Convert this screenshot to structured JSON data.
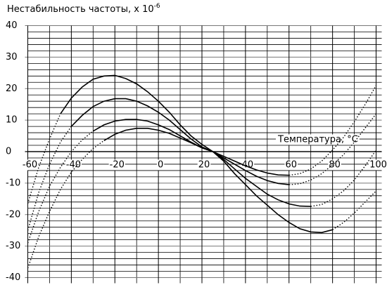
{
  "chart_data": {
    "type": "line",
    "title": "Нестабильность частоты, x 10",
    "title_exponent": "-6",
    "x_label": "Температура, °C",
    "x": [
      -60,
      -55,
      -50,
      -45,
      -40,
      -35,
      -30,
      -25,
      -20,
      -15,
      -10,
      -5,
      0,
      5,
      10,
      15,
      20,
      25,
      30,
      35,
      40,
      45,
      50,
      55,
      60,
      65,
      70,
      75,
      80,
      85,
      90,
      95,
      100
    ],
    "series": [
      {
        "color": "#000000",
        "solid_xlim": [
          -45,
          80
        ],
        "values": [
          -16.5,
          -5,
          4,
          12,
          17,
          20.5,
          23,
          24,
          24.2,
          23.2,
          21.5,
          19,
          16,
          12.5,
          8.5,
          5,
          2.3,
          0,
          -3,
          -7,
          -10.5,
          -14,
          -17,
          -20,
          -22.5,
          -24.5,
          -25.5,
          -25.7,
          -24.8,
          -22.5,
          -19.5,
          -16,
          -12.5
        ]
      },
      {
        "color": "#000000",
        "solid_xlim": [
          -40,
          70
        ],
        "values": [
          -25,
          -13,
          -4,
          3,
          8,
          11.5,
          14.3,
          16,
          16.8,
          16.8,
          16,
          14.5,
          12.5,
          10,
          7,
          4,
          1.5,
          0,
          -2.5,
          -5.5,
          -8.5,
          -11,
          -13.5,
          -15.3,
          -16.6,
          -17.3,
          -17.4,
          -16.8,
          -15,
          -12.5,
          -9,
          -4.5,
          0.5
        ]
      },
      {
        "color": "#000000",
        "solid_xlim": [
          -30,
          60
        ],
        "values": [
          -29,
          -19,
          -11,
          -5,
          0,
          3.7,
          6.5,
          8.5,
          9.7,
          10.2,
          10.2,
          9.7,
          8.5,
          7,
          5,
          3,
          1.2,
          0,
          -2,
          -4,
          -6,
          -7.8,
          -9.2,
          -10.1,
          -10.5,
          -10.2,
          -9,
          -7,
          -4.2,
          -1,
          3,
          7.5,
          12
        ]
      },
      {
        "color": "#000000",
        "solid_xlim": [
          -25,
          60
        ],
        "values": [
          -37,
          -27,
          -19,
          -12,
          -6.5,
          -2.5,
          1,
          3.5,
          5.5,
          6.8,
          7.4,
          7.4,
          6.8,
          5.8,
          4.3,
          2.8,
          1.2,
          0,
          -1.5,
          -3,
          -4.5,
          -5.8,
          -6.8,
          -7.4,
          -7.5,
          -7,
          -5.5,
          -3,
          0.5,
          4.5,
          9.5,
          15,
          21
        ]
      }
    ],
    "xlim": [
      -60,
      100
    ],
    "xticks": [
      -60,
      -40,
      -20,
      0,
      20,
      40,
      60,
      80,
      100
    ],
    "xminorticks": [
      -50,
      -30,
      -10,
      10,
      30,
      50,
      70,
      90
    ],
    "ylim": [
      -40,
      40
    ],
    "yticks": [
      -40,
      -30,
      -20,
      -10,
      0,
      10,
      20,
      30,
      40
    ],
    "yminorticks": [
      -38,
      -36,
      -34,
      -32,
      -28,
      -26,
      -24,
      -22,
      -18,
      -16,
      -14,
      -12,
      -8,
      -6,
      -4,
      -2,
      2,
      4,
      6,
      8,
      12,
      14,
      16,
      18,
      22,
      24,
      26,
      28,
      32,
      34,
      36,
      38
    ],
    "grid": true
  }
}
